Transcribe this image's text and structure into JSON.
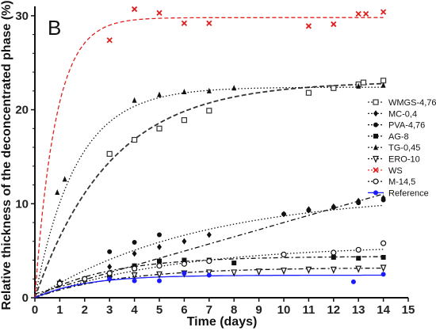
{
  "chart_data": {
    "type": "scatter",
    "panel_label": "B",
    "xlabel": "Time (days)",
    "ylabel": "Relative thickness of the deconcentrated phase (%)",
    "xlim": [
      0,
      15
    ],
    "ylim": [
      0,
      31
    ],
    "x_ticks": [
      0,
      1,
      2,
      3,
      4,
      5,
      6,
      7,
      8,
      9,
      10,
      11,
      12,
      13,
      14,
      15
    ],
    "y_ticks": [
      0,
      10,
      20,
      30
    ],
    "legend_position": "right",
    "grid": false,
    "series": [
      {
        "name": "WMGS-4,76",
        "marker": "open-square",
        "color": "#333333",
        "line": "dashed-bold",
        "x": [
          3,
          4,
          5,
          6,
          7,
          11,
          12,
          13,
          13.2,
          14
        ],
        "y": [
          15.3,
          16.8,
          18.0,
          18.9,
          19.9,
          21.8,
          22.3,
          22.7,
          22.9,
          23.1
        ],
        "fit": {
          "model": "one-phase",
          "plateau": 23.0,
          "k": 0.33
        }
      },
      {
        "name": "MC-0,4",
        "marker": "diamond",
        "color": "#111111",
        "line": "dash-dot",
        "x": [
          1,
          2,
          3,
          4,
          5,
          6,
          7,
          10,
          11,
          12,
          13,
          14
        ],
        "y": [
          1.7,
          2.0,
          3.3,
          4.7,
          5.4,
          6.0,
          6.7,
          8.9,
          9.4,
          9.7,
          10.3,
          10.6
        ],
        "fit": {
          "model": "linear",
          "slope": 0.76,
          "intercept": 0.4
        }
      },
      {
        "name": "PVA-4,76",
        "marker": "circle",
        "color": "#111111",
        "line": "dotted",
        "x": [
          3,
          4,
          5,
          10,
          11,
          12,
          13,
          14
        ],
        "y": [
          4.9,
          5.9,
          6.7,
          8.9,
          9.3,
          9.6,
          10.1,
          10.4
        ],
        "fit": {
          "model": "one-phase",
          "plateau": 11.2,
          "k": 0.15
        }
      },
      {
        "name": "AG-8",
        "marker": "square",
        "color": "#111111",
        "line": "dash-dot",
        "x": [
          1,
          2,
          3,
          4,
          5,
          6,
          7,
          8,
          12,
          13,
          14
        ],
        "y": [
          1.5,
          2.0,
          2.4,
          3.4,
          3.9,
          4.0,
          4.0,
          3.7,
          4.3,
          4.2,
          4.3
        ],
        "fit": {
          "model": "one-phase",
          "plateau": 4.4,
          "k": 0.35
        }
      },
      {
        "name": "TG-0,45",
        "marker": "triangle-up",
        "color": "#111111",
        "line": "dotted",
        "x": [
          0.9,
          1.2,
          4,
          5,
          6,
          7,
          8,
          13,
          14
        ],
        "y": [
          11.2,
          12.6,
          21.0,
          21.6,
          21.9,
          22.0,
          22.3,
          22.5,
          22.6
        ],
        "fit": {
          "model": "one-phase",
          "plateau": 22.4,
          "k": 0.6
        }
      },
      {
        "name": "ERO-10",
        "marker": "triangle-down",
        "color": "#111111",
        "line": "dash-dot",
        "x": [
          1,
          2,
          3,
          4,
          5,
          6,
          7,
          8,
          9,
          10,
          11,
          12,
          13,
          14
        ],
        "y": [
          1.5,
          1.8,
          2.0,
          2.4,
          2.5,
          2.6,
          2.7,
          2.7,
          2.8,
          2.9,
          3.0,
          3.0,
          3.1,
          3.2
        ],
        "fit": {
          "model": "one-phase",
          "plateau": 3.2,
          "k": 0.3
        }
      },
      {
        "name": "WS",
        "marker": "x",
        "color": "#e02020",
        "line": "dashed",
        "x": [
          3,
          4,
          5,
          6,
          7,
          11,
          12,
          13,
          13.3,
          14
        ],
        "y": [
          27.4,
          30.7,
          30.3,
          29.2,
          29.2,
          28.9,
          29.1,
          30.2,
          30.2,
          30.4
        ],
        "fit": {
          "model": "one-phase",
          "plateau": 29.8,
          "k": 1.2
        }
      },
      {
        "name": "M-14,5",
        "marker": "open-circle",
        "color": "#111111",
        "line": "dotted",
        "x": [
          1,
          2,
          3,
          4,
          5,
          6,
          7,
          10,
          12,
          13,
          14
        ],
        "y": [
          1.5,
          2.0,
          2.6,
          3.1,
          3.4,
          3.6,
          3.9,
          4.6,
          4.8,
          5.1,
          5.8
        ],
        "fit": {
          "model": "one-phase",
          "plateau": 5.6,
          "k": 0.18
        }
      },
      {
        "name": "Reference",
        "marker": "circle",
        "color": "#1a1aff",
        "line": "solid",
        "x": [
          3,
          4,
          5,
          6,
          7,
          12.8,
          14
        ],
        "y": [
          2.0,
          1.8,
          1.8,
          2.6,
          2.4,
          1.7,
          2.5
        ],
        "fit": {
          "model": "one-phase",
          "plateau": 2.4,
          "k": 0.5
        }
      }
    ]
  }
}
